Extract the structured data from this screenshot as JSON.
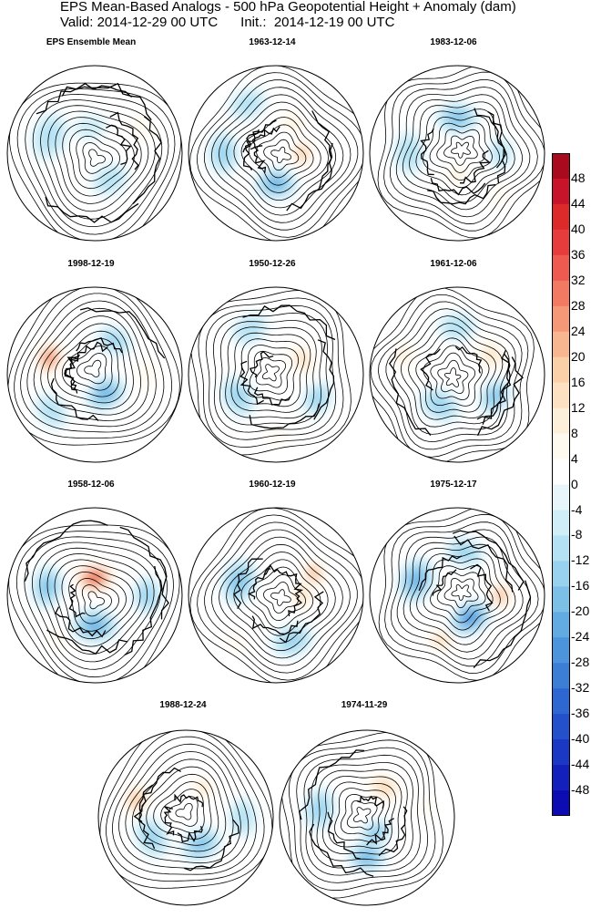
{
  "title": {
    "line1": "EPS Mean-Based Analogs - 500 hPa Geopotential Height + Anomaly (dam)",
    "line2": "Valid: 2014-12-29 00 UTC      Init.:  2014-12-19 00 UTC"
  },
  "panels": [
    {
      "label": "EPS Ensemble Mean",
      "anomalies": [
        {
          "a": 200,
          "r": 0.55,
          "s": 0.22,
          "v": -10
        },
        {
          "a": 60,
          "r": 0.35,
          "s": 0.18,
          "v": -8
        },
        {
          "a": 330,
          "r": 0.6,
          "s": 0.2,
          "v": 8
        },
        {
          "a": 120,
          "r": 0.75,
          "s": 0.2,
          "v": 6
        },
        {
          "a": 260,
          "r": 0.3,
          "s": 0.15,
          "v": -6
        }
      ]
    },
    {
      "label": "1963-12-14",
      "anomalies": [
        {
          "a": 90,
          "r": 0.35,
          "s": 0.2,
          "v": -20
        },
        {
          "a": 0,
          "r": 0.3,
          "s": 0.15,
          "v": 24
        },
        {
          "a": 300,
          "r": 0.4,
          "s": 0.17,
          "v": 14
        },
        {
          "a": 180,
          "r": 0.6,
          "s": 0.2,
          "v": -12
        },
        {
          "a": 240,
          "r": 0.65,
          "s": 0.18,
          "v": -10
        }
      ]
    },
    {
      "label": "1983-12-06",
      "anomalies": [
        {
          "a": 270,
          "r": 0.4,
          "s": 0.2,
          "v": -16
        },
        {
          "a": 90,
          "r": 0.25,
          "s": 0.15,
          "v": 12
        },
        {
          "a": 180,
          "r": 0.55,
          "s": 0.2,
          "v": -10
        },
        {
          "a": 45,
          "r": 0.7,
          "s": 0.18,
          "v": 10
        },
        {
          "a": 0,
          "r": 0.5,
          "s": 0.15,
          "v": -8
        }
      ]
    },
    {
      "label": "1998-12-19",
      "anomalies": [
        {
          "a": 200,
          "r": 0.55,
          "s": 0.18,
          "v": 36
        },
        {
          "a": 60,
          "r": 0.25,
          "s": 0.2,
          "v": -22
        },
        {
          "a": 300,
          "r": 0.45,
          "s": 0.17,
          "v": -14
        },
        {
          "a": 0,
          "r": 0.6,
          "s": 0.2,
          "v": 10
        },
        {
          "a": 140,
          "r": 0.65,
          "s": 0.18,
          "v": -10
        }
      ]
    },
    {
      "label": "1950-12-26",
      "anomalies": [
        {
          "a": 330,
          "r": 0.35,
          "s": 0.2,
          "v": 16
        },
        {
          "a": 150,
          "r": 0.5,
          "s": 0.2,
          "v": -14
        },
        {
          "a": 30,
          "r": 0.55,
          "s": 0.17,
          "v": -12
        },
        {
          "a": 240,
          "r": 0.6,
          "s": 0.18,
          "v": -10
        },
        {
          "a": 90,
          "r": 0.7,
          "s": 0.15,
          "v": 8
        }
      ]
    },
    {
      "label": "1961-12-06",
      "anomalies": [
        {
          "a": 330,
          "r": 0.45,
          "s": 0.2,
          "v": 18
        },
        {
          "a": 200,
          "r": 0.65,
          "s": 0.18,
          "v": 14
        },
        {
          "a": 30,
          "r": 0.5,
          "s": 0.18,
          "v": -18
        },
        {
          "a": 120,
          "r": 0.4,
          "s": 0.2,
          "v": -12
        },
        {
          "a": 270,
          "r": 0.55,
          "s": 0.18,
          "v": -10
        }
      ]
    },
    {
      "label": "1958-12-06",
      "anomalies": [
        {
          "a": 270,
          "r": 0.2,
          "s": 0.2,
          "v": 44
        },
        {
          "a": 90,
          "r": 0.35,
          "s": 0.22,
          "v": -20
        },
        {
          "a": 190,
          "r": 0.55,
          "s": 0.2,
          "v": -16
        },
        {
          "a": 0,
          "r": 0.6,
          "s": 0.18,
          "v": -12
        },
        {
          "a": 130,
          "r": 0.65,
          "s": 0.15,
          "v": 10
        }
      ]
    },
    {
      "label": "1960-12-19",
      "anomalies": [
        {
          "a": 330,
          "r": 0.5,
          "s": 0.15,
          "v": 28
        },
        {
          "a": 0,
          "r": 0.3,
          "s": 0.15,
          "v": 20
        },
        {
          "a": 200,
          "r": 0.45,
          "s": 0.22,
          "v": -18
        },
        {
          "a": 70,
          "r": 0.55,
          "s": 0.2,
          "v": -14
        },
        {
          "a": 130,
          "r": 0.7,
          "s": 0.17,
          "v": 8
        }
      ]
    },
    {
      "label": "1975-12-17",
      "anomalies": [
        {
          "a": 60,
          "r": 0.3,
          "s": 0.2,
          "v": -28
        },
        {
          "a": 0,
          "r": 0.5,
          "s": 0.15,
          "v": 30
        },
        {
          "a": 110,
          "r": 0.55,
          "s": 0.15,
          "v": 22
        },
        {
          "a": 200,
          "r": 0.5,
          "s": 0.22,
          "v": -20
        },
        {
          "a": 280,
          "r": 0.5,
          "s": 0.18,
          "v": -14
        }
      ]
    },
    {
      "label": "1988-12-24",
      "anomalies": [
        {
          "a": 200,
          "r": 0.6,
          "s": 0.18,
          "v": 24
        },
        {
          "a": 300,
          "r": 0.4,
          "s": 0.15,
          "v": 16
        },
        {
          "a": 60,
          "r": 0.35,
          "s": 0.2,
          "v": -16
        },
        {
          "a": 150,
          "r": 0.45,
          "s": 0.2,
          "v": -12
        },
        {
          "a": 0,
          "r": 0.65,
          "s": 0.18,
          "v": -10
        }
      ]
    },
    {
      "label": "1974-11-29",
      "anomalies": [
        {
          "a": 90,
          "r": 0.45,
          "s": 0.18,
          "v": -22
        },
        {
          "a": 60,
          "r": 0.2,
          "s": 0.15,
          "v": -18
        },
        {
          "a": 300,
          "r": 0.4,
          "s": 0.2,
          "v": 20
        },
        {
          "a": 190,
          "r": 0.55,
          "s": 0.2,
          "v": -14
        },
        {
          "a": 350,
          "r": 0.7,
          "s": 0.15,
          "v": 10
        }
      ]
    }
  ],
  "colorbar": {
    "labels": [
      "48",
      "44",
      "40",
      "36",
      "32",
      "28",
      "24",
      "20",
      "16",
      "12",
      "8",
      "4",
      "0",
      "-4",
      "-8",
      "-12",
      "-16",
      "-20",
      "-24",
      "-28",
      "-32",
      "-36",
      "-40",
      "-44",
      "-48"
    ],
    "colors": [
      "#aa0a1e",
      "#c8142a",
      "#dc2a2a",
      "#e63c3c",
      "#ee5a50",
      "#f27a62",
      "#f59878",
      "#f8b690",
      "#fad0a8",
      "#fce2c2",
      "#fdf0da",
      "#fffaf0",
      "#ffffff",
      "#e8f6fc",
      "#cfeef8",
      "#b4e2f4",
      "#98d2ee",
      "#7cc0e8",
      "#62aae2",
      "#4c94dc",
      "#3c7ed6",
      "#2e66d2",
      "#2450cc",
      "#1a38c4",
      "#1420bc",
      "#0c0cb2"
    ]
  }
}
